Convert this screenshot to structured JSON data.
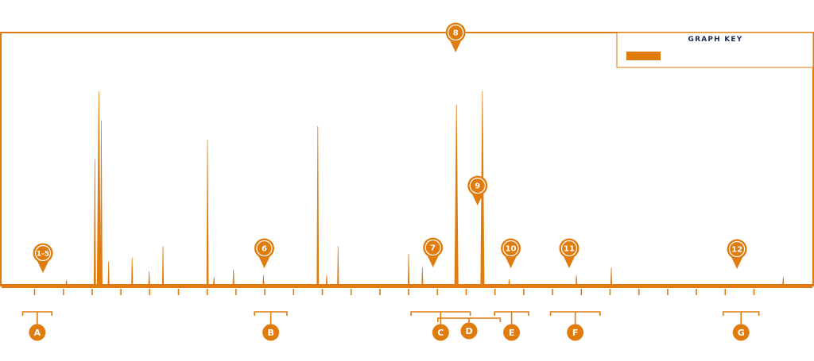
{
  "colors": {
    "accent": "#E07B0E",
    "legend_title": "#1f2d5a",
    "background": "#ffffff"
  },
  "legend": {
    "title": "GRAPH KEY",
    "swatch_color": "#E07B0E"
  },
  "chart_data": {
    "type": "line",
    "title": "",
    "xlabel": "",
    "ylabel": "",
    "x_ticks_count": 26,
    "xlim": [
      0,
      100
    ],
    "ylim": [
      0,
      100
    ],
    "grid": false,
    "legend_position": "top-right",
    "peaks": [
      {
        "x": 8.0,
        "y": 2.5
      },
      {
        "x": 11.5,
        "y": 65
      },
      {
        "x": 12.0,
        "y": 100
      },
      {
        "x": 12.3,
        "y": 85
      },
      {
        "x": 13.2,
        "y": 12
      },
      {
        "x": 16.1,
        "y": 14
      },
      {
        "x": 18.2,
        "y": 7
      },
      {
        "x": 19.9,
        "y": 20
      },
      {
        "x": 25.4,
        "y": 75
      },
      {
        "x": 26.2,
        "y": 4
      },
      {
        "x": 28.6,
        "y": 8
      },
      {
        "x": 32.3,
        "y": 5
      },
      {
        "x": 39.0,
        "y": 82
      },
      {
        "x": 40.1,
        "y": 5
      },
      {
        "x": 41.5,
        "y": 20
      },
      {
        "x": 50.2,
        "y": 16
      },
      {
        "x": 51.9,
        "y": 9
      },
      {
        "x": 56.1,
        "y": 93
      },
      {
        "x": 59.3,
        "y": 100
      },
      {
        "x": 62.6,
        "y": 3
      },
      {
        "x": 70.9,
        "y": 5
      },
      {
        "x": 75.2,
        "y": 9
      },
      {
        "x": 96.4,
        "y": 4
      }
    ],
    "markers": [
      {
        "label": "1-5",
        "x": 5.1
      },
      {
        "label": "6",
        "x": 32.4
      },
      {
        "label": "7",
        "x": 53.2
      },
      {
        "label": "8",
        "x": 56.0
      },
      {
        "label": "9",
        "x": 58.7
      },
      {
        "label": "10",
        "x": 62.8
      },
      {
        "label": "11",
        "x": 70.0
      },
      {
        "label": "12",
        "x": 90.7
      }
    ],
    "ranges": [
      {
        "label": "A",
        "x_start": 2.6,
        "x_end": 6.2
      },
      {
        "label": "B",
        "x_start": 31.2,
        "x_end": 35.2
      },
      {
        "label": "C",
        "x_start": 50.5,
        "x_end": 57.8
      },
      {
        "label": "D",
        "x_start": 53.8,
        "x_end": 61.5
      },
      {
        "label": "E",
        "x_start": 60.8,
        "x_end": 65.0
      },
      {
        "label": "F",
        "x_start": 67.7,
        "x_end": 73.8
      },
      {
        "label": "G",
        "x_start": 89.0,
        "x_end": 93.4
      }
    ]
  }
}
